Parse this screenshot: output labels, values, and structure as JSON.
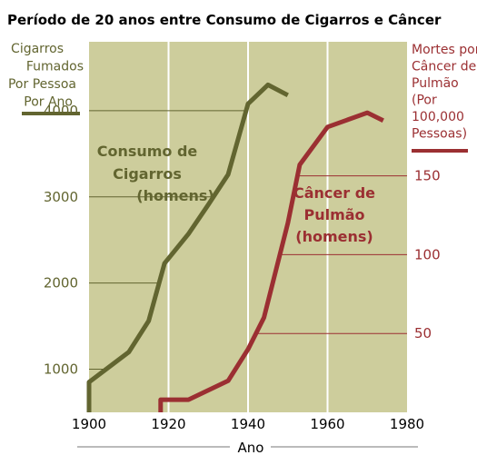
{
  "chart_data": {
    "type": "line",
    "title": "Período de 20 anos entre Consumo de Cigarros e Câncer",
    "xlabel": "Ano",
    "xlim": [
      1900,
      1980
    ],
    "x_ticks": [
      "1900",
      "1920",
      "1940",
      "1960",
      "1980"
    ],
    "grid": true,
    "background": "#cdcd9c",
    "left_axis": {
      "label_lines": [
        "Cigarros",
        "Fumados",
        "Por Pessoa",
        "Por Ano"
      ],
      "ylim": [
        500,
        4800
      ],
      "ticks": [
        "1000",
        "2000",
        "3000",
        "4000"
      ],
      "color": "#626530"
    },
    "right_axis": {
      "label_lines": [
        "Mortes por",
        "Câncer de",
        "Pulmão",
        "(Por",
        "100,000",
        "Pessoas)"
      ],
      "ylim": [
        0,
        235
      ],
      "ticks": [
        "50",
        "100",
        "150"
      ],
      "color": "#9b2f32"
    },
    "series": [
      {
        "name": "Consumo de Cigarros (homens)",
        "name_lines": [
          "Consumo de",
          "Cigarros",
          "(homens)"
        ],
        "axis": "left",
        "color": "#626530",
        "points": [
          [
            1900,
            500
          ],
          [
            1900,
            850
          ],
          [
            1910,
            1200
          ],
          [
            1915,
            1560
          ],
          [
            1919,
            2230
          ],
          [
            1925,
            2570
          ],
          [
            1930,
            2910
          ],
          [
            1935,
            3260
          ],
          [
            1940,
            4080
          ],
          [
            1945,
            4300
          ],
          [
            1950,
            4180
          ]
        ]
      },
      {
        "name": "Câncer de Pulmão (homens)",
        "name_lines": [
          "Câncer de",
          "Pulmão",
          "(homens)"
        ],
        "axis": "right",
        "color": "#9b2f32",
        "points": [
          [
            1918,
            0
          ],
          [
            1918,
            8
          ],
          [
            1925,
            8
          ],
          [
            1935,
            20
          ],
          [
            1940,
            40
          ],
          [
            1944,
            60
          ],
          [
            1950,
            120
          ],
          [
            1953,
            157
          ],
          [
            1960,
            181
          ],
          [
            1970,
            190
          ],
          [
            1974,
            185
          ]
        ]
      }
    ]
  }
}
